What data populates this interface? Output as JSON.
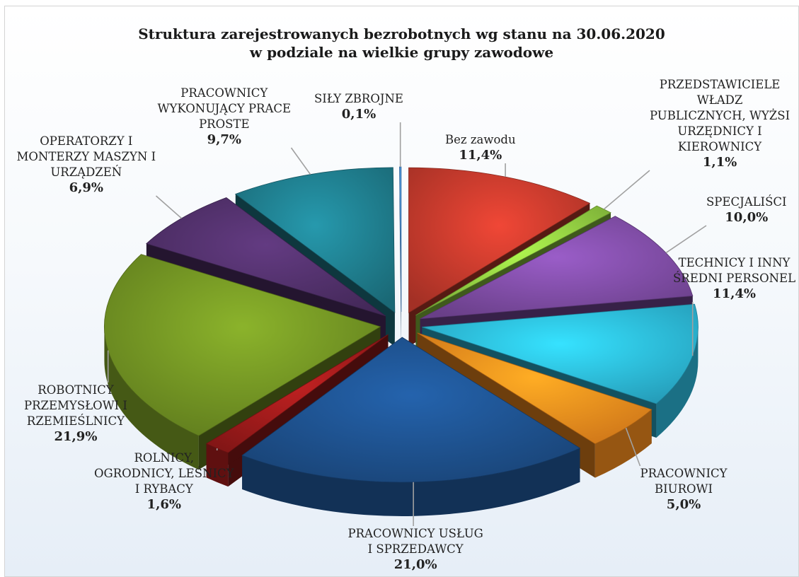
{
  "chart_data": {
    "type": "pie",
    "title": "Struktura zarejestrowanych bezrobotnych wg stanu na 30.06.2020",
    "subtitle": "w podziale na wielkie grupy zawodowe",
    "slices": [
      {
        "label": "Bez zawodu",
        "value": 11.4,
        "value_label": "11,4%",
        "color": "#c0392b"
      },
      {
        "label": "PRZEDSTAWICIELE\nWŁADZ\nPUBLICZNYCH, WYŻSI\nURZĘDNICY I\nKIEROWNICY",
        "value": 1.1,
        "value_label": "1,1%",
        "color": "#8dc63f"
      },
      {
        "label": "SPECJALIŚCI",
        "value": 10.0,
        "value_label": "10,0%",
        "color": "#7b4aa0"
      },
      {
        "label": "TECHNICY I INNY\nŚREDNI PERSONEL",
        "value": 11.4,
        "value_label": "11,4%",
        "color": "#2bb5d6"
      },
      {
        "label": "PRACOWNICY\nBIUROWI",
        "value": 5.0,
        "value_label": "5,0%",
        "color": "#f28a1d"
      },
      {
        "label": "PRACOWNICY USŁUG\nI SPRZEDAWCY",
        "value": 21.0,
        "value_label": "21,0%",
        "color": "#1d4f8a"
      },
      {
        "label": "ROLNICY,\nOGRODNICY, LEŚNICY\nI RYBACY",
        "value": 1.6,
        "value_label": "1,6%",
        "color": "#9a1a1a"
      },
      {
        "label": "ROBOTNICY\nPRZEMYSŁOWI I\nRZEMIEŚLNICY",
        "value": 21.9,
        "value_label": "21,9%",
        "color": "#6f8f22"
      },
      {
        "label": "OPERATORZY I\nMONTERZY MASZYN I\nURZĄDZEŃ",
        "value": 6.9,
        "value_label": "6,9%",
        "color": "#4f2f68"
      },
      {
        "label": "PRACOWNICY\nWYKONUJĄCY PRACE\nPROSTE",
        "value": 9.7,
        "value_label": "9,7%",
        "color": "#1e7a8a"
      },
      {
        "label": "SIŁY ZBROJNE",
        "value": 0.1,
        "value_label": "0,1%",
        "color": "#4a90d9"
      }
    ]
  }
}
